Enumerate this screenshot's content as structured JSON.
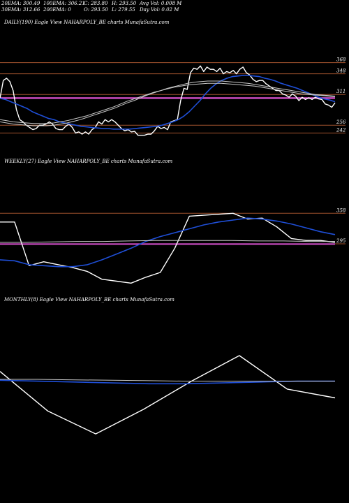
{
  "header": {
    "row1": [
      "20EMA: 300.49",
      "100EMA: 306.21",
      "C: 283.80",
      "H: 293.50",
      "Avg Vol: 0.008  M"
    ],
    "row2": [
      "30EMA: 312.66",
      "200EMA: 0",
      "O: 293.50",
      "L: 279.55",
      "Day Vol: 0.02  M"
    ]
  },
  "panels": {
    "daily": {
      "label": "DAILY(190) Eagle   View  NAHARPOLY_BE charts MunafaSutra.com"
    },
    "weekly": {
      "label": "WEEKLY(27) Eagle   View  NAHARPOLY_BE charts MunafaSutra.com"
    },
    "monthly": {
      "label": "MONTHLY(8) Eagle   View  NAHARPOLY_BE charts MunafaSutra.com"
    }
  },
  "colors": {
    "background": "#000000",
    "price": "#ffffff",
    "ema_short": "#1f4fd8",
    "ema_long": "#c8c8c8",
    "level_line": "#a0522d",
    "support_band": "#d14fc8"
  },
  "chart_data": [
    {
      "type": "line",
      "panel": "daily",
      "ylim": [
        230,
        380
      ],
      "tick_labels": [
        "368",
        "348",
        "311",
        "256",
        "242"
      ],
      "levels": [
        368,
        348,
        311,
        256,
        242
      ],
      "support_band": [
        303,
        306
      ],
      "series": [
        {
          "role": "price",
          "values": [
            304,
            336,
            340,
            334,
            318,
            284,
            266,
            262,
            256,
            252,
            248,
            250,
            256,
            256,
            258,
            262,
            258,
            250,
            248,
            248,
            254,
            258,
            252,
            242,
            244,
            240,
            244,
            240,
            248,
            252,
            262,
            258,
            266,
            262,
            266,
            262,
            256,
            250,
            246,
            248,
            244,
            245,
            238,
            238,
            238,
            240,
            240,
            246,
            254,
            250,
            252,
            248,
            262,
            264,
            266,
            300,
            322,
            320,
            350,
            358,
            356,
            362,
            352,
            360,
            356,
            356,
            352,
            358,
            348,
            352,
            350,
            354,
            348,
            356,
            360,
            350,
            346,
            338,
            334,
            336,
            336,
            330,
            326,
            322,
            318,
            318,
            312,
            310,
            306,
            312,
            308,
            300,
            306,
            302,
            305,
            302,
            306,
            303,
            302,
            294,
            292,
            288,
            296
          ]
        },
        {
          "role": "ema_short",
          "values": [
            304,
            302,
            298,
            294,
            290,
            286,
            280,
            276,
            272,
            268,
            266,
            262,
            260,
            258,
            256,
            254,
            253,
            252,
            251,
            250,
            250,
            249,
            249,
            249,
            249,
            250,
            251,
            252,
            253,
            254,
            256,
            259,
            262,
            266,
            272,
            280,
            290,
            300,
            312,
            322,
            330,
            336,
            340,
            343,
            344,
            345,
            345,
            344,
            343,
            340,
            338,
            335,
            331,
            328,
            325,
            322,
            318,
            314,
            310,
            306,
            303,
            301,
            298
          ]
        },
        {
          "role": "ema_long",
          "values": [
            262,
            260,
            258,
            257,
            256,
            255,
            255,
            255,
            256,
            258,
            260,
            263,
            266,
            270,
            274,
            278,
            282,
            286,
            291,
            296,
            300,
            305,
            310,
            314,
            318,
            322,
            325,
            328,
            331,
            333,
            334,
            335,
            335,
            335,
            334,
            333,
            332,
            331,
            329,
            327,
            325,
            323,
            321,
            319,
            317,
            315,
            313,
            311,
            310,
            309,
            308
          ]
        },
        {
          "role": "ema_long2",
          "values": [
            266,
            264,
            262,
            261,
            260,
            259,
            259,
            259,
            260,
            262,
            264,
            267,
            270,
            273,
            277,
            281,
            285,
            289,
            294,
            299,
            303,
            307,
            311,
            315,
            318,
            321,
            324,
            326,
            328,
            329,
            330,
            331,
            331,
            331,
            330,
            329,
            328,
            327,
            326,
            324,
            322,
            320,
            318,
            316,
            314,
            312,
            311,
            310,
            309,
            308,
            307
          ]
        }
      ]
    },
    {
      "type": "line",
      "panel": "weekly",
      "ylim": [
        200,
        380
      ],
      "tick_labels": [
        "358",
        "295"
      ],
      "levels": [
        358,
        295
      ],
      "support_band": [
        293,
        296
      ],
      "series": [
        {
          "role": "price",
          "values": [
            340,
            340,
            250,
            258,
            252,
            246,
            238,
            222,
            218,
            214,
            226,
            236,
            286,
            352,
            354,
            356,
            358,
            346,
            348,
            330,
            306,
            302,
            302,
            298
          ]
        },
        {
          "role": "ema_short",
          "values": [
            262,
            260,
            252,
            250,
            248,
            248,
            252,
            262,
            274,
            286,
            300,
            310,
            318,
            326,
            334,
            340,
            344,
            348,
            346,
            342,
            336,
            328,
            320,
            314
          ]
        },
        {
          "role": "ema_long",
          "values": [
            298,
            298,
            299,
            300,
            300,
            301,
            302,
            302,
            302,
            302,
            301,
            301,
            300,
            300
          ]
        }
      ]
    },
    {
      "type": "line",
      "panel": "monthly",
      "ylim": [
        150,
        420
      ],
      "tick_labels": [],
      "series": [
        {
          "role": "price",
          "values": [
            322,
            232,
            180,
            236,
            300,
            358,
            282,
            262
          ]
        },
        {
          "role": "ema_short",
          "values": [
            302,
            300,
            298,
            296,
            294,
            294,
            296,
            298,
            300,
            300
          ]
        },
        {
          "role": "ema_long",
          "values": [
            304,
            304,
            303,
            302,
            301,
            300,
            300,
            300,
            300,
            300
          ]
        }
      ]
    }
  ]
}
